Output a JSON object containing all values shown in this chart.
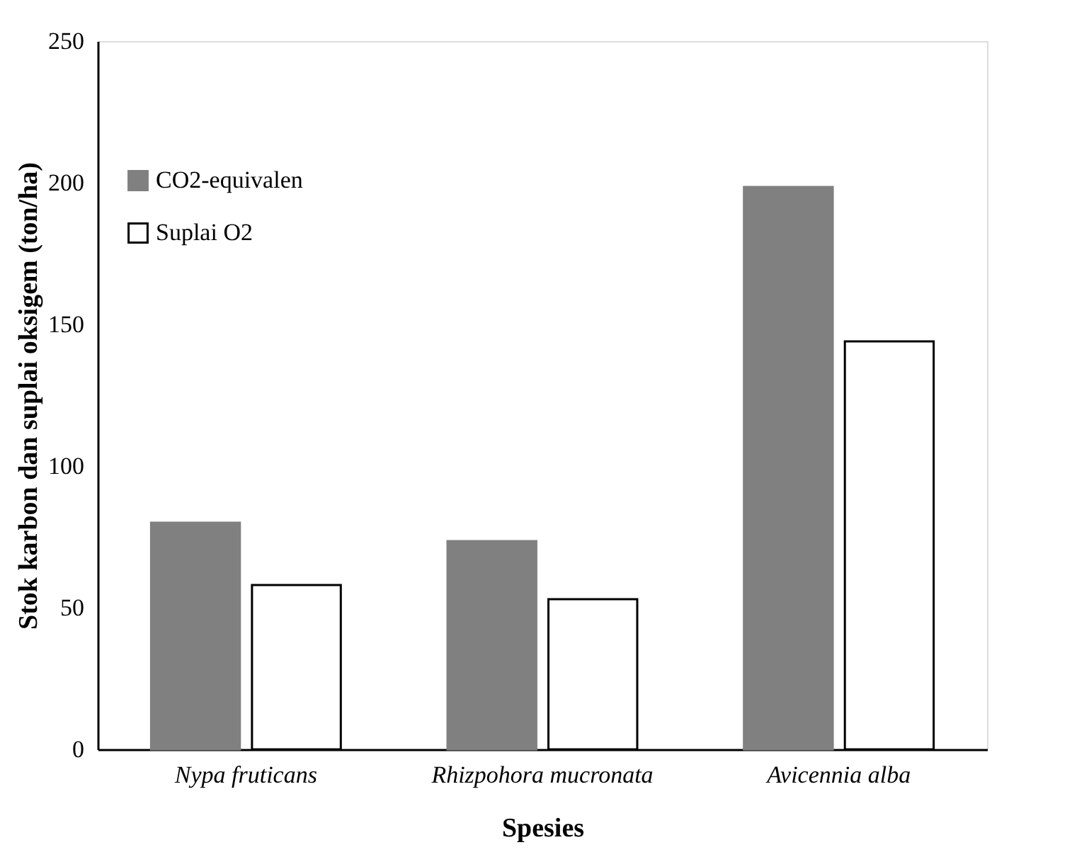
{
  "chart_data": {
    "type": "bar",
    "xlabel": "Spesies",
    "ylabel": "Stok karbon dan suplai oksigem (ton/ha)",
    "categories": [
      "Nypa fruticans",
      "Rhizpohora mucronata",
      "Avicennia alba"
    ],
    "series": [
      {
        "name": "CO2-equivalen",
        "color": "#808080",
        "values": [
          80,
          73.5,
          198.5
        ]
      },
      {
        "name": "Suplai O2",
        "color": "#ffffff",
        "values": [
          58,
          53,
          144
        ]
      }
    ],
    "ylim": [
      0,
      250
    ],
    "yticks": [
      0,
      50,
      100,
      150,
      200,
      250
    ],
    "grid": false,
    "legend": "top left"
  }
}
